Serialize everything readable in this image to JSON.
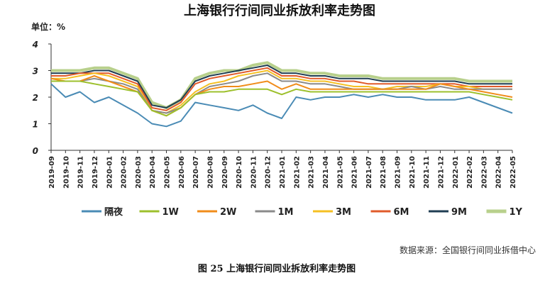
{
  "chart_data": {
    "type": "line",
    "title": "上海银行行间同业拆放利率走势图",
    "unit_label": "单位：%",
    "xlabel": "",
    "ylabel": "",
    "ylim": [
      0,
      4
    ],
    "yticks": [
      "0",
      "1",
      "2",
      "3",
      "4"
    ],
    "grid": false,
    "legend_position": "bottom",
    "x": [
      "2019-09",
      "2019-10",
      "2019-11",
      "2019-12",
      "2020-01",
      "2020-02",
      "2020-03",
      "2020-04",
      "2020-05",
      "2020-06",
      "2020-07",
      "2020-08",
      "2020-09",
      "2020-10",
      "2020-11",
      "2020-12",
      "2021-01",
      "2021-02",
      "2021-03",
      "2021-04",
      "2021-05",
      "2021-06",
      "2021-07",
      "2021-08",
      "2021-09",
      "2021-10",
      "2021-11",
      "2021-12",
      "2022-01",
      "2022-02",
      "2022-03",
      "2022-04",
      "2022-05"
    ],
    "series": [
      {
        "name": "隔夜",
        "color": "#4a8bb5",
        "values": [
          2.5,
          2.0,
          2.2,
          1.8,
          2.0,
          1.7,
          1.4,
          1.0,
          0.9,
          1.1,
          1.8,
          1.7,
          1.6,
          1.5,
          1.7,
          1.4,
          1.2,
          2.0,
          1.9,
          2.0,
          2.0,
          2.1,
          2.0,
          2.1,
          2.0,
          2.0,
          1.9,
          1.9,
          1.9,
          2.0,
          1.8,
          1.6,
          1.4
        ]
      },
      {
        "name": "1W",
        "color": "#9dc02c",
        "values": [
          2.6,
          2.6,
          2.6,
          2.5,
          2.4,
          2.3,
          2.2,
          1.5,
          1.3,
          1.6,
          2.1,
          2.2,
          2.2,
          2.3,
          2.3,
          2.3,
          2.1,
          2.3,
          2.2,
          2.2,
          2.2,
          2.2,
          2.2,
          2.2,
          2.2,
          2.2,
          2.2,
          2.2,
          2.2,
          2.2,
          2.1,
          2.0,
          1.9
        ]
      },
      {
        "name": "2W",
        "color": "#f08c1a",
        "values": [
          2.7,
          2.6,
          2.6,
          2.8,
          2.6,
          2.4,
          2.2,
          1.5,
          1.3,
          1.6,
          2.1,
          2.3,
          2.4,
          2.4,
          2.5,
          2.6,
          2.3,
          2.5,
          2.3,
          2.3,
          2.3,
          2.3,
          2.3,
          2.3,
          2.3,
          2.3,
          2.3,
          2.5,
          2.4,
          2.3,
          2.2,
          2.1,
          2.0
        ]
      },
      {
        "name": "1M",
        "color": "#8a8a8a",
        "values": [
          2.6,
          2.6,
          2.6,
          2.7,
          2.6,
          2.5,
          2.3,
          1.5,
          1.4,
          1.6,
          2.1,
          2.4,
          2.5,
          2.6,
          2.8,
          2.9,
          2.6,
          2.6,
          2.5,
          2.5,
          2.4,
          2.3,
          2.3,
          2.3,
          2.3,
          2.4,
          2.3,
          2.4,
          2.3,
          2.3,
          2.3,
          2.3,
          2.3
        ]
      },
      {
        "name": "3M",
        "color": "#f5c023",
        "values": [
          2.7,
          2.7,
          2.8,
          2.9,
          2.8,
          2.6,
          2.4,
          1.5,
          1.4,
          1.7,
          2.2,
          2.5,
          2.6,
          2.8,
          2.9,
          3.0,
          2.7,
          2.7,
          2.6,
          2.6,
          2.5,
          2.4,
          2.4,
          2.3,
          2.4,
          2.4,
          2.4,
          2.5,
          2.4,
          2.4,
          2.3,
          2.3,
          2.3
        ]
      },
      {
        "name": "6M",
        "color": "#e05a2a",
        "values": [
          2.8,
          2.8,
          2.9,
          2.9,
          2.9,
          2.7,
          2.5,
          1.6,
          1.5,
          1.8,
          2.5,
          2.7,
          2.8,
          2.9,
          3.0,
          3.1,
          2.8,
          2.8,
          2.7,
          2.7,
          2.6,
          2.6,
          2.5,
          2.5,
          2.5,
          2.5,
          2.5,
          2.5,
          2.5,
          2.4,
          2.4,
          2.4,
          2.4
        ]
      },
      {
        "name": "9M",
        "color": "#1f3d52",
        "values": [
          2.9,
          2.9,
          2.9,
          3.0,
          3.0,
          2.8,
          2.6,
          1.7,
          1.6,
          1.9,
          2.6,
          2.8,
          2.9,
          3.0,
          3.1,
          3.2,
          2.9,
          2.9,
          2.8,
          2.8,
          2.7,
          2.7,
          2.7,
          2.6,
          2.6,
          2.6,
          2.6,
          2.6,
          2.6,
          2.5,
          2.5,
          2.5,
          2.5
        ]
      },
      {
        "name": "1Y",
        "color": "#b8d08c",
        "values": [
          3.0,
          3.0,
          3.0,
          3.1,
          3.1,
          2.9,
          2.7,
          1.8,
          1.6,
          1.9,
          2.7,
          2.9,
          3.0,
          3.0,
          3.2,
          3.3,
          3.0,
          3.0,
          2.9,
          2.9,
          2.8,
          2.8,
          2.8,
          2.7,
          2.7,
          2.7,
          2.7,
          2.7,
          2.7,
          2.6,
          2.6,
          2.6,
          2.6
        ]
      }
    ]
  },
  "footer": {
    "source": "数据来源：全国银行间同业拆借中心",
    "caption": "图 25   上海银行间同业拆放利率走势图"
  }
}
